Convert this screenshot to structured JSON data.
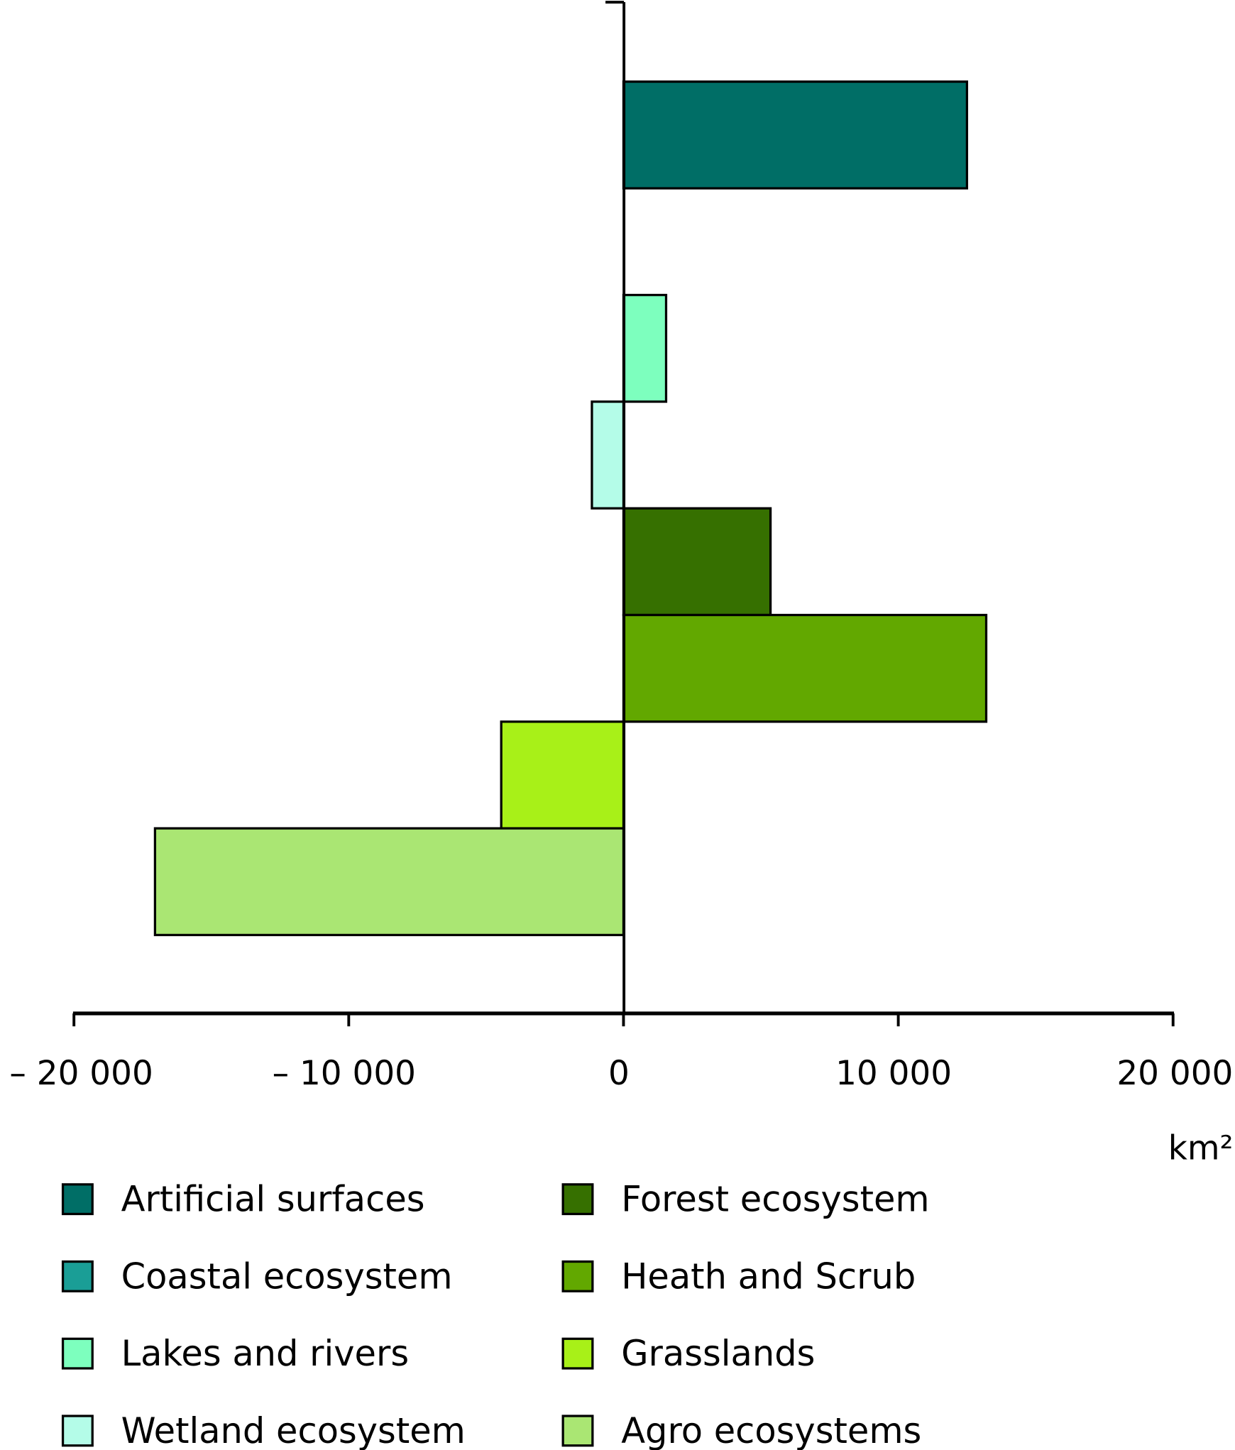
{
  "chart_data": {
    "type": "bar",
    "orientation": "horizontal",
    "title": "",
    "xlabel": "km²",
    "ylabel": "",
    "xlim": [
      -20000,
      20000
    ],
    "xticks": [
      -20000,
      -10000,
      0,
      10000,
      20000
    ],
    "xtick_labels": [
      "– 20 000",
      "– 10 000",
      "0",
      "10 000",
      "20 000"
    ],
    "unit_label": "km²",
    "grid": false,
    "legend_position": "bottom",
    "categories": [
      "Artificial surfaces",
      "Coastal ecosystem",
      "Lakes and rivers",
      "Wetland ecosystem",
      "Forest ecosystem",
      "Heath and Scrub",
      "Grasslands",
      "Agro ecosystems"
    ],
    "values": [
      12500,
      0,
      1550,
      -1150,
      5350,
      13200,
      -4450,
      -17050
    ],
    "colors": [
      "#006e66",
      "#1a9e96",
      "#7dffbe",
      "#b4fce8",
      "#367000",
      "#62a800",
      "#a8f018",
      "#aae673"
    ]
  }
}
